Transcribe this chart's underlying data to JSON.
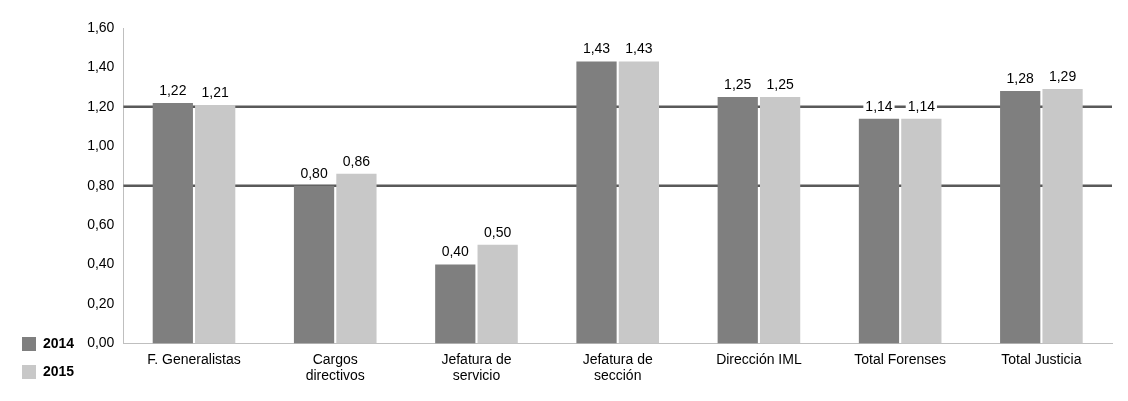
{
  "chart_data": {
    "type": "bar",
    "categories": [
      "F. Generalistas",
      "Cargos directivos",
      "Jefatura de servicio",
      "Jefatura de sección",
      "Dirección IML",
      "Total Forenses",
      "Total Justicia"
    ],
    "series": [
      {
        "name": "2014",
        "color": "#7f7f7f",
        "values": [
          1.22,
          0.8,
          0.4,
          1.43,
          1.25,
          1.14,
          1.28
        ],
        "value_labels": [
          "1,22",
          "0,80",
          "0,40",
          "1,43",
          "1,25",
          "1,14",
          "1,28"
        ]
      },
      {
        "name": "2015",
        "color": "#c8c8c8",
        "values": [
          1.21,
          0.86,
          0.5,
          1.43,
          1.25,
          1.14,
          1.29
        ],
        "value_labels": [
          "1,21",
          "0,86",
          "0,50",
          "1,43",
          "1,25",
          "1,14",
          "1,29"
        ]
      }
    ],
    "ylim": [
      0,
      1.6
    ],
    "yticks": [
      {
        "value": 0,
        "label": "0,00"
      },
      {
        "value": 0.2,
        "label": "0,20"
      },
      {
        "value": 0.4,
        "label": "0,40"
      },
      {
        "value": 0.6,
        "label": "0,60"
      },
      {
        "value": 0.8,
        "label": "0,80"
      },
      {
        "value": 1,
        "label": "1,00"
      },
      {
        "value": 1.2,
        "label": "1,20"
      },
      {
        "value": 1.4,
        "label": "1,40"
      },
      {
        "value": 1.6,
        "label": "1,60"
      }
    ],
    "ref_lines": [
      {
        "axis": "y",
        "value": 0.8,
        "color": "#595959"
      },
      {
        "axis": "y",
        "value": 1.2,
        "color": "#595959"
      }
    ],
    "legend": "bottom left",
    "grid": false
  }
}
